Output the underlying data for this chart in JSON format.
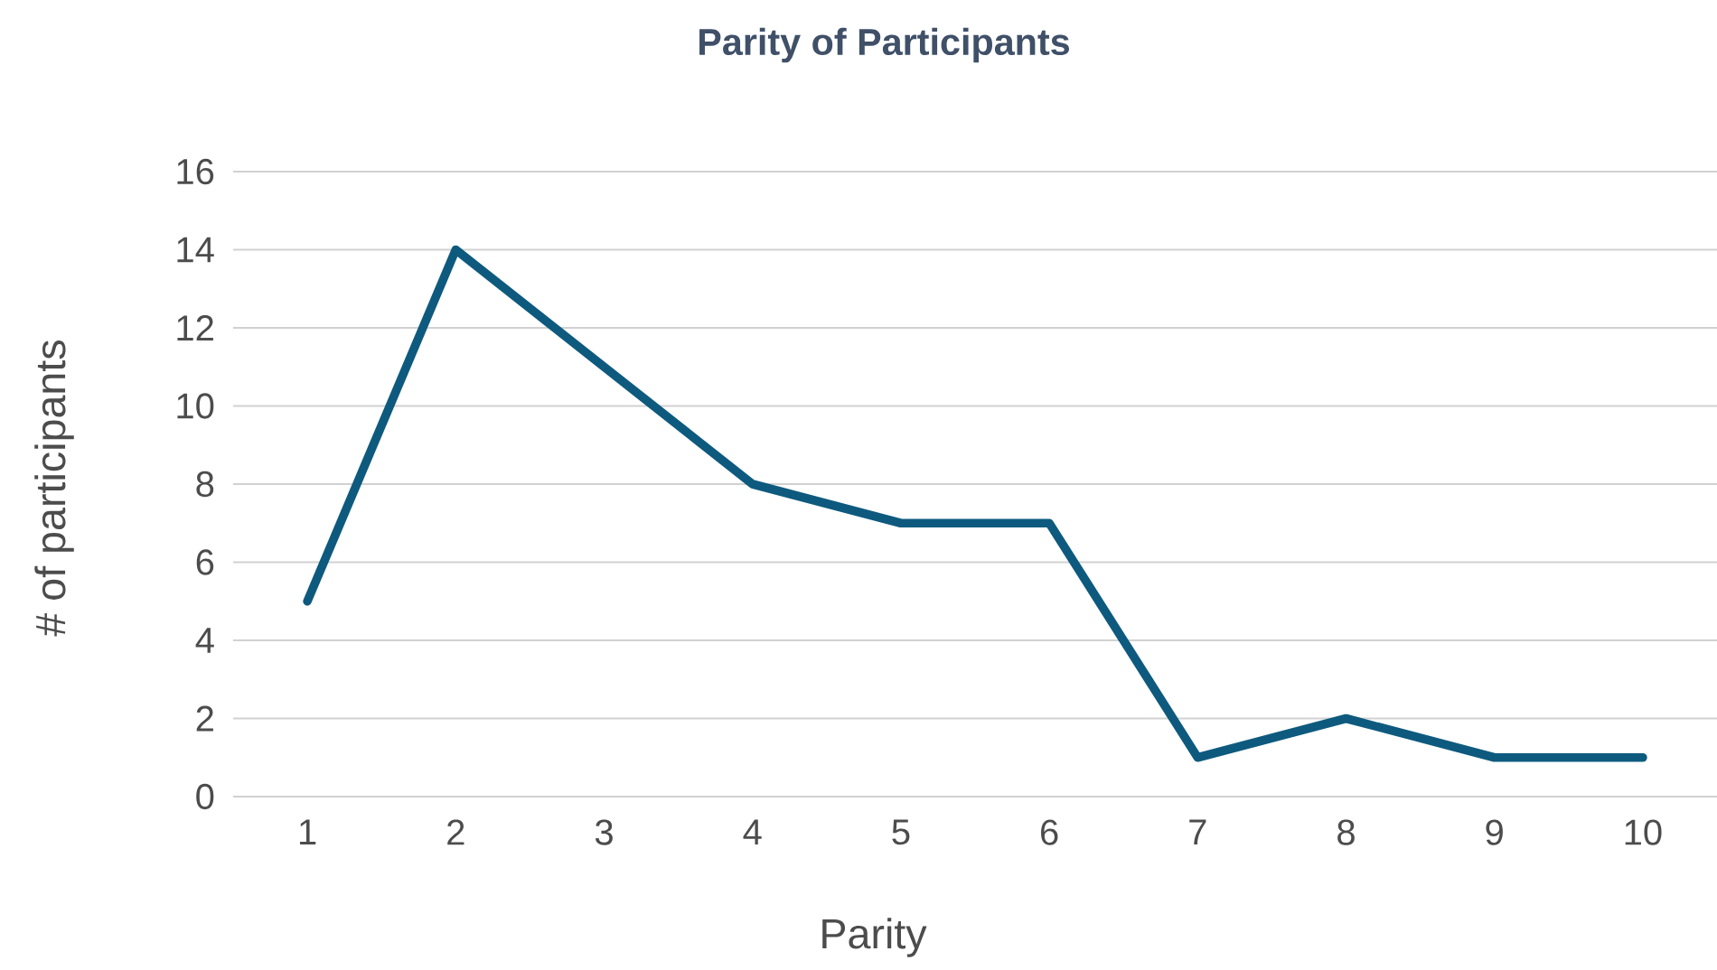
{
  "chart_data": {
    "type": "line",
    "title": "Parity of Participants",
    "xlabel": "Parity",
    "ylabel": "# of participants",
    "categories": [
      "1",
      "2",
      "3",
      "4",
      "5",
      "6",
      "7",
      "8",
      "9",
      "10"
    ],
    "values": [
      5,
      14,
      11,
      8,
      7,
      7,
      1,
      2,
      1,
      1
    ],
    "color": "#0e5a7e",
    "ylim": [
      0,
      16
    ],
    "yticks": [
      0,
      2,
      4,
      6,
      8,
      10,
      12,
      14,
      16
    ],
    "grid": "y",
    "line_style": "solid"
  }
}
